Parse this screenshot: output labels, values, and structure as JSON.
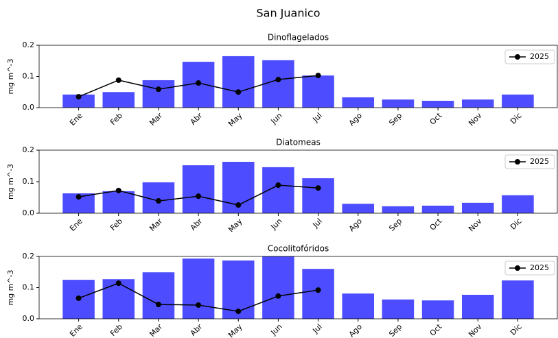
{
  "title": "San Juanico",
  "chart_data": [
    {
      "type": "bar",
      "title": "Dinoflagelados",
      "y_label": "mg m^-3",
      "categories": [
        "Ene",
        "Feb",
        "Mar",
        "Abr",
        "May",
        "Jun",
        "Jul",
        "Ago",
        "Sep",
        "Oct",
        "Nov",
        "Dic"
      ],
      "series": [
        {
          "color": "#4d4dff",
          "values": [
            0.042,
            0.05,
            0.088,
            0.147,
            0.165,
            0.152,
            0.103,
            0.033,
            0.026,
            0.022,
            0.026,
            0.042
          ]
        },
        {
          "name": "2025",
          "type": "line",
          "color": "#000000",
          "values": [
            0.035,
            0.088,
            0.059,
            0.079,
            0.05,
            0.09,
            0.103,
            null,
            null,
            null,
            null,
            null
          ]
        }
      ],
      "ylim": [
        0,
        0.2
      ],
      "yticks": [
        {
          "value": 0,
          "label": "0.0"
        },
        {
          "value": 0.1,
          "label": "0.1"
        },
        {
          "value": 0.2,
          "label": "0.2"
        }
      ],
      "legend": "upper right"
    },
    {
      "type": "bar",
      "title": "Diatomeas",
      "y_label": "mg m^-3",
      "categories": [
        "Ene",
        "Feb",
        "Mar",
        "Abr",
        "May",
        "Jun",
        "Jul",
        "Ago",
        "Sep",
        "Oct",
        "Nov",
        "Dic"
      ],
      "series": [
        {
          "color": "#4d4dff",
          "values": [
            0.063,
            0.07,
            0.098,
            0.152,
            0.163,
            0.146,
            0.111,
            0.03,
            0.022,
            0.024,
            0.033,
            0.057
          ]
        },
        {
          "name": "2025",
          "type": "line",
          "color": "#000000",
          "values": [
            0.052,
            0.072,
            0.039,
            0.054,
            0.026,
            0.089,
            0.08,
            null,
            null,
            null,
            null,
            null
          ]
        }
      ],
      "ylim": [
        0,
        0.2
      ],
      "yticks": [
        {
          "value": 0,
          "label": "0.0"
        },
        {
          "value": 0.1,
          "label": "0.1"
        },
        {
          "value": 0.2,
          "label": "0.2"
        }
      ],
      "legend": "upper right"
    },
    {
      "type": "bar",
      "title": "Cocolitofóridos",
      "y_label": "mg m^-3",
      "categories": [
        "Ene",
        "Feb",
        "Mar",
        "Abr",
        "May",
        "Jun",
        "Jul",
        "Ago",
        "Sep",
        "Oct",
        "Nov",
        "Dic"
      ],
      "series": [
        {
          "color": "#4d4dff",
          "values": [
            0.125,
            0.127,
            0.149,
            0.193,
            0.187,
            0.205,
            0.16,
            0.081,
            0.062,
            0.059,
            0.077,
            0.123
          ]
        },
        {
          "name": "2025",
          "type": "line",
          "color": "#000000",
          "values": [
            0.066,
            0.114,
            0.046,
            0.044,
            0.024,
            0.073,
            0.092,
            null,
            null,
            null,
            null,
            null
          ]
        }
      ],
      "ylim": [
        0,
        0.2
      ],
      "yticks": [
        {
          "value": 0,
          "label": "0.0"
        },
        {
          "value": 0.1,
          "label": "0.1"
        },
        {
          "value": 0.2,
          "label": "0.2"
        }
      ],
      "legend": "upper right"
    }
  ]
}
